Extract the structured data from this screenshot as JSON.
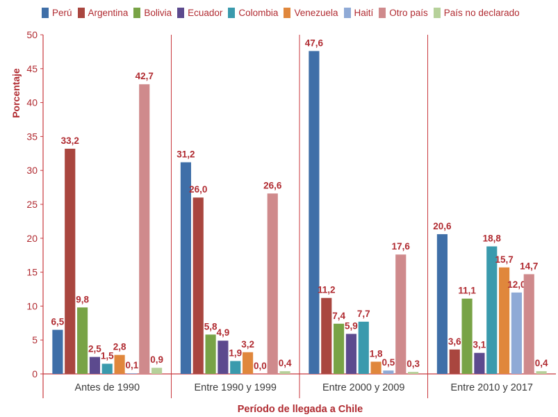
{
  "chart_data": {
    "type": "bar",
    "ylabel": "Porcentaje",
    "xlabel": "Período de llegada a Chile",
    "ylim": [
      0,
      50
    ],
    "yticks": [
      "0",
      "5",
      "10",
      "15",
      "20",
      "25",
      "30",
      "35",
      "40",
      "45",
      "50"
    ],
    "legend_position": "top",
    "grid": false,
    "categories": [
      "Antes de 1990",
      "Entre 1990 y 1999",
      "Entre 2000 y 2009",
      "Entre 2010 y 2017"
    ],
    "series": [
      {
        "name": "Perú",
        "color": "#3f6fa8",
        "values": [
          6.5,
          31.2,
          47.6,
          20.6
        ],
        "labels": [
          "6,5",
          "31,2",
          "47,6",
          "20,6"
        ]
      },
      {
        "name": "Argentina",
        "color": "#a9463f",
        "values": [
          33.2,
          26.0,
          11.2,
          3.6
        ],
        "labels": [
          "33,2",
          "26,0",
          "11,2",
          "3,6"
        ]
      },
      {
        "name": "Bolivia",
        "color": "#78a346",
        "values": [
          9.8,
          5.8,
          7.4,
          11.1
        ],
        "labels": [
          "9,8",
          "5,8",
          "7,4",
          "11,1"
        ]
      },
      {
        "name": "Ecuador",
        "color": "#5c4a8e",
        "values": [
          2.5,
          4.9,
          5.9,
          3.1
        ],
        "labels": [
          "2,5",
          "4,9",
          "5,9",
          "3,1"
        ]
      },
      {
        "name": "Colombia",
        "color": "#3a9aad",
        "values": [
          1.5,
          1.9,
          7.7,
          18.8
        ],
        "labels": [
          "1,5",
          "1,9",
          "7,7",
          "18,8"
        ]
      },
      {
        "name": "Venezuela",
        "color": "#e0873c",
        "values": [
          2.8,
          3.2,
          1.8,
          15.7
        ],
        "labels": [
          "2,8",
          "3,2",
          "1,8",
          "15,7"
        ]
      },
      {
        "name": "Haití",
        "color": "#8faad6",
        "values": [
          0.1,
          0.0,
          0.5,
          12.0
        ],
        "labels": [
          "0,1",
          "0,0",
          "0,5",
          "12,0"
        ]
      },
      {
        "name": "Otro país",
        "color": "#cf8a8c",
        "values": [
          42.7,
          26.6,
          17.6,
          14.7
        ],
        "labels": [
          "42,7",
          "26,6",
          "17,6",
          "14,7"
        ]
      },
      {
        "name": "País no declarado",
        "color": "#b6d19a",
        "values": [
          0.9,
          0.4,
          0.3,
          0.4
        ],
        "labels": [
          "0,9",
          "0,4",
          "0,3",
          "0,4"
        ]
      }
    ],
    "colors": {
      "axis": "#c8373d",
      "text": "#b02a30",
      "category_text": "#3a3a3a"
    }
  }
}
